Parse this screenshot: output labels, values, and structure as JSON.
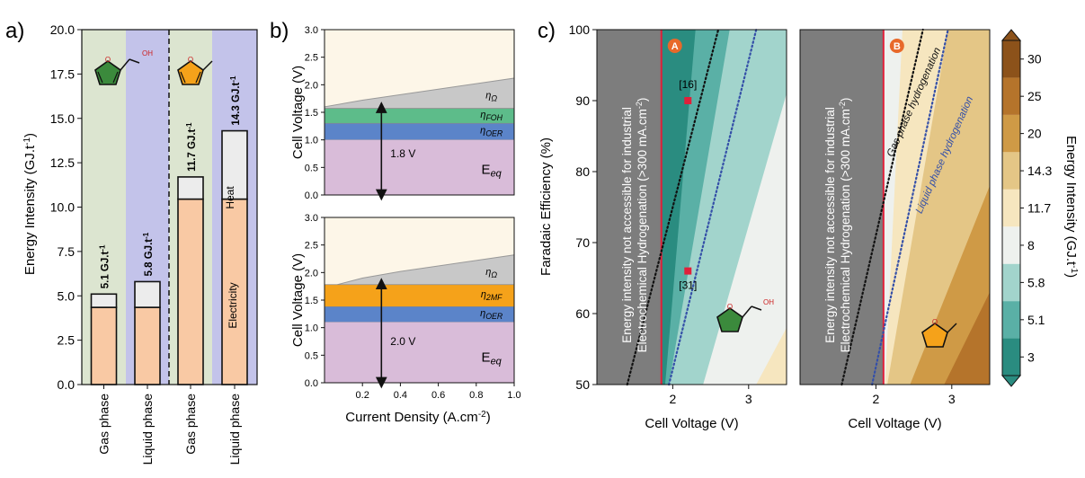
{
  "panel_labels": {
    "a": "a)",
    "b": "b)",
    "c": "c)"
  },
  "chart_data": [
    {
      "panel": "a",
      "type": "bar",
      "ylabel": "Energy Intensity (GJ.t",
      "ylabel_sup": "-1",
      "ylim": [
        0,
        20
      ],
      "yticks": [
        "0.0",
        "2.5",
        "5.0",
        "7.5",
        "10.0",
        "12.5",
        "15.0",
        "17.5",
        "20.0"
      ],
      "categories": [
        "Gas phase",
        "Liquid phase",
        "Gas phase",
        "Liquid phase"
      ],
      "series": [
        {
          "name": "Electricity",
          "values": [
            4.35,
            4.35,
            10.45,
            10.45
          ]
        },
        {
          "name": "Heat",
          "values": [
            0.75,
            1.45,
            1.25,
            3.85
          ]
        }
      ],
      "totals": [
        "5.1 GJ.t",
        "5.8 GJ.t",
        "11.7 GJ.t",
        "14.3 GJ.t"
      ],
      "totals_sup": "-1",
      "totals_values": [
        5.1,
        5.8,
        11.7,
        14.3
      ],
      "bar_labels": {
        "heat": "Heat",
        "electricity": "Electricity"
      },
      "colors": {
        "gas_bg": "#dce5d0",
        "liquid_bg": "#c3c3ea",
        "electricity": "#f9c9a4",
        "heat": "#ececec"
      }
    },
    {
      "panel": "b-top",
      "type": "area",
      "ylabel": "Cell Voltage (V)",
      "ylim": [
        0,
        3
      ],
      "yticks": [
        "0.0",
        "0.5",
        "1.0",
        "1.5",
        "2.0",
        "2.5",
        "3.0"
      ],
      "xlim": [
        0,
        1
      ],
      "layers": [
        {
          "name": "E",
          "sub": "eq",
          "top": [
            1.0,
            1.0
          ]
        },
        {
          "name": "η",
          "sub": "OER",
          "top": [
            1.3,
            1.3
          ]
        },
        {
          "name": "η",
          "sub": "FOH",
          "top": [
            1.57,
            1.57
          ]
        },
        {
          "name": "η",
          "sub": "Ω",
          "x": [
            0,
            0.2,
            0.4,
            0.6,
            0.8,
            1.0
          ],
          "top": [
            1.6,
            1.72,
            1.82,
            1.92,
            2.02,
            2.12
          ]
        }
      ],
      "arrow_x": 0.3,
      "arrow_label": "1.8 V",
      "colors": {
        "eq": "#d9bcd9",
        "oer": "#5b84c9",
        "foh": "#5dbc8a",
        "ohm": "#c8c8c8",
        "bg": "#fdf6e8"
      }
    },
    {
      "panel": "b-bottom",
      "type": "area",
      "ylabel": "Cell Voltage (V)",
      "xlabel": "Current Density (A.cm",
      "xlabel_sup": "-2",
      "ylim": [
        0,
        3
      ],
      "yticks": [
        "0.0",
        "0.5",
        "1.0",
        "1.5",
        "2.0",
        "2.5",
        "3.0"
      ],
      "xlim": [
        0,
        1
      ],
      "xticks": [
        "0.2",
        "0.4",
        "0.6",
        "0.8",
        "1.0"
      ],
      "layers": [
        {
          "name": "E",
          "sub": "eq",
          "top": [
            1.1,
            1.1
          ]
        },
        {
          "name": "η",
          "sub": "OER",
          "top": [
            1.38,
            1.38
          ]
        },
        {
          "name": "η",
          "sub": "2MF",
          "top": [
            1.78,
            1.78
          ]
        },
        {
          "name": "η",
          "sub": "Ω",
          "x": [
            0,
            0.2,
            0.4,
            0.6,
            0.8,
            1.0
          ],
          "top": [
            1.72,
            1.9,
            2.02,
            2.12,
            2.22,
            2.32
          ]
        }
      ],
      "arrow_x": 0.3,
      "arrow_label": "2.0 V",
      "colors": {
        "eq": "#d9bcd9",
        "oer": "#5b84c9",
        "mf": "#f5a21a",
        "ohm": "#c8c8c8",
        "bg": "#fdf6e8"
      }
    },
    {
      "panel": "c-left",
      "type": "heatmap",
      "ylabel": "Faradaic Efficiency (%)",
      "xlabel": "Cell Voltage (V)",
      "xlim": [
        1.0,
        3.5
      ],
      "ylim": [
        50,
        100
      ],
      "xticks": [
        "2",
        "3"
      ],
      "yticks": [
        "50",
        "60",
        "70",
        "80",
        "90",
        "100"
      ],
      "badge": "A",
      "red_line_x": 1.85,
      "points": [
        {
          "label": "[16]",
          "x": 2.2,
          "y": 90
        },
        {
          "label": "[31]",
          "x": 2.2,
          "y": 66
        }
      ],
      "gray_note_line1": "Energy intensity not accessible for industrial",
      "gray_note_line2": "Electrochemical Hydrogenation (>300 mA.cm",
      "gray_note_sup": "-2",
      "gray_note_end": ")"
    },
    {
      "panel": "c-right",
      "type": "heatmap",
      "xlabel": "Cell Voltage (V)",
      "xlim": [
        1.0,
        3.5
      ],
      "ylim": [
        50,
        100
      ],
      "xticks": [
        "2",
        "3"
      ],
      "badge": "B",
      "red_line_x": 2.1,
      "line_labels": [
        "Gas phase hydrogenation",
        "Liquid phase hydrogenation"
      ],
      "gray_note_line1": "Energy intensity not accessible for industrial",
      "gray_note_line2": "Electrochemical Hydrogenation (>300 mA.cm",
      "gray_note_sup": "-2",
      "gray_note_end": ")"
    },
    {
      "panel": "colorbar",
      "type": "heatmap",
      "label": "Energy Intensity (GJ.t",
      "label_sup": "-1",
      "ticks": [
        "3",
        "5.1",
        "5.8",
        "8",
        "11.7",
        "14.3",
        "20",
        "25",
        "30"
      ],
      "colors": [
        "#2a8c80",
        "#5ab0a6",
        "#a2d4cc",
        "#eef1ee",
        "#f6e6bf",
        "#e4c686",
        "#cf9a46",
        "#b5742b",
        "#8c521a"
      ]
    }
  ]
}
